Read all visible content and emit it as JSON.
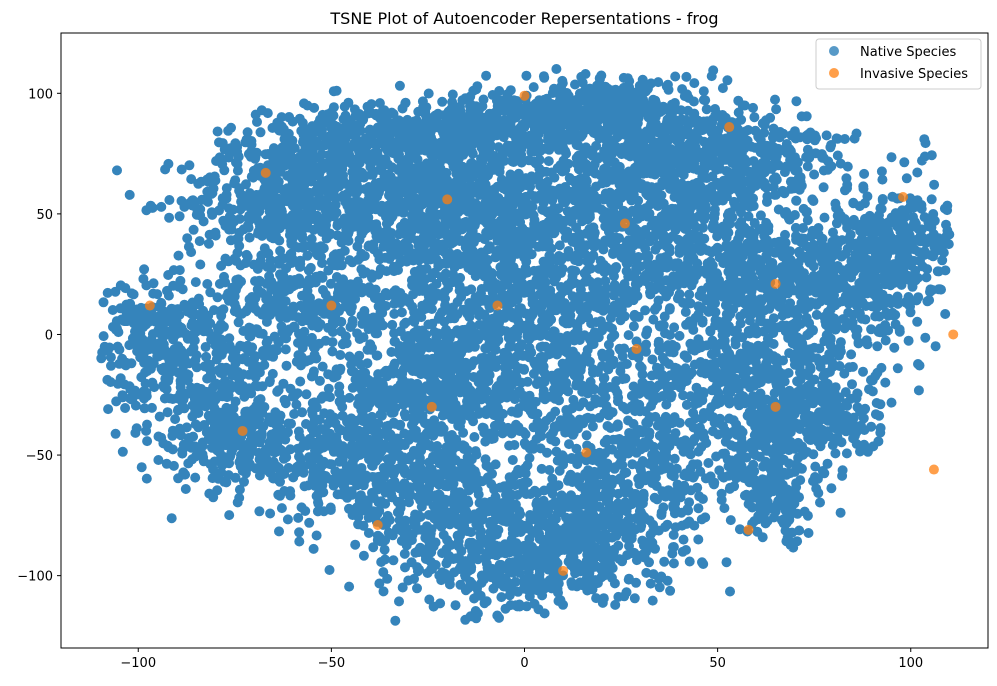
{
  "chart_data": {
    "type": "scatter",
    "title": "TSNE Plot of Autoencoder Repersentations - frog",
    "xlabel": "",
    "ylabel": "",
    "xlim": [
      -120,
      120
    ],
    "ylim": [
      -130,
      125
    ],
    "xticks": [
      -100,
      -50,
      0,
      50,
      100
    ],
    "yticks": [
      -100,
      -50,
      0,
      50,
      100
    ],
    "xtick_labels": [
      "−100",
      "−50",
      "0",
      "50",
      "100"
    ],
    "ytick_labels": [
      "−100",
      "−50",
      "0",
      "50",
      "100"
    ],
    "grid": false,
    "legend_position": "top-right",
    "series": [
      {
        "name": "Native Species",
        "color": "#1f77b4",
        "note_density": "dense cloud",
        "points": []
      },
      {
        "name": "Invasive Species",
        "color": "#ff7f0e",
        "points": [
          [
            0,
            99
          ],
          [
            53,
            86
          ],
          [
            -67,
            67
          ],
          [
            -20,
            56
          ],
          [
            98,
            57
          ],
          [
            26,
            46
          ],
          [
            65,
            21
          ],
          [
            -97,
            12
          ],
          [
            -50,
            12
          ],
          [
            -7,
            12
          ],
          [
            111,
            0
          ],
          [
            29,
            -6
          ],
          [
            -24,
            -30
          ],
          [
            65,
            -30
          ],
          [
            -73,
            -40
          ],
          [
            16,
            -49
          ],
          [
            106,
            -56
          ],
          [
            -38,
            -79
          ],
          [
            58,
            -81
          ],
          [
            10,
            -98
          ]
        ]
      }
    ]
  }
}
